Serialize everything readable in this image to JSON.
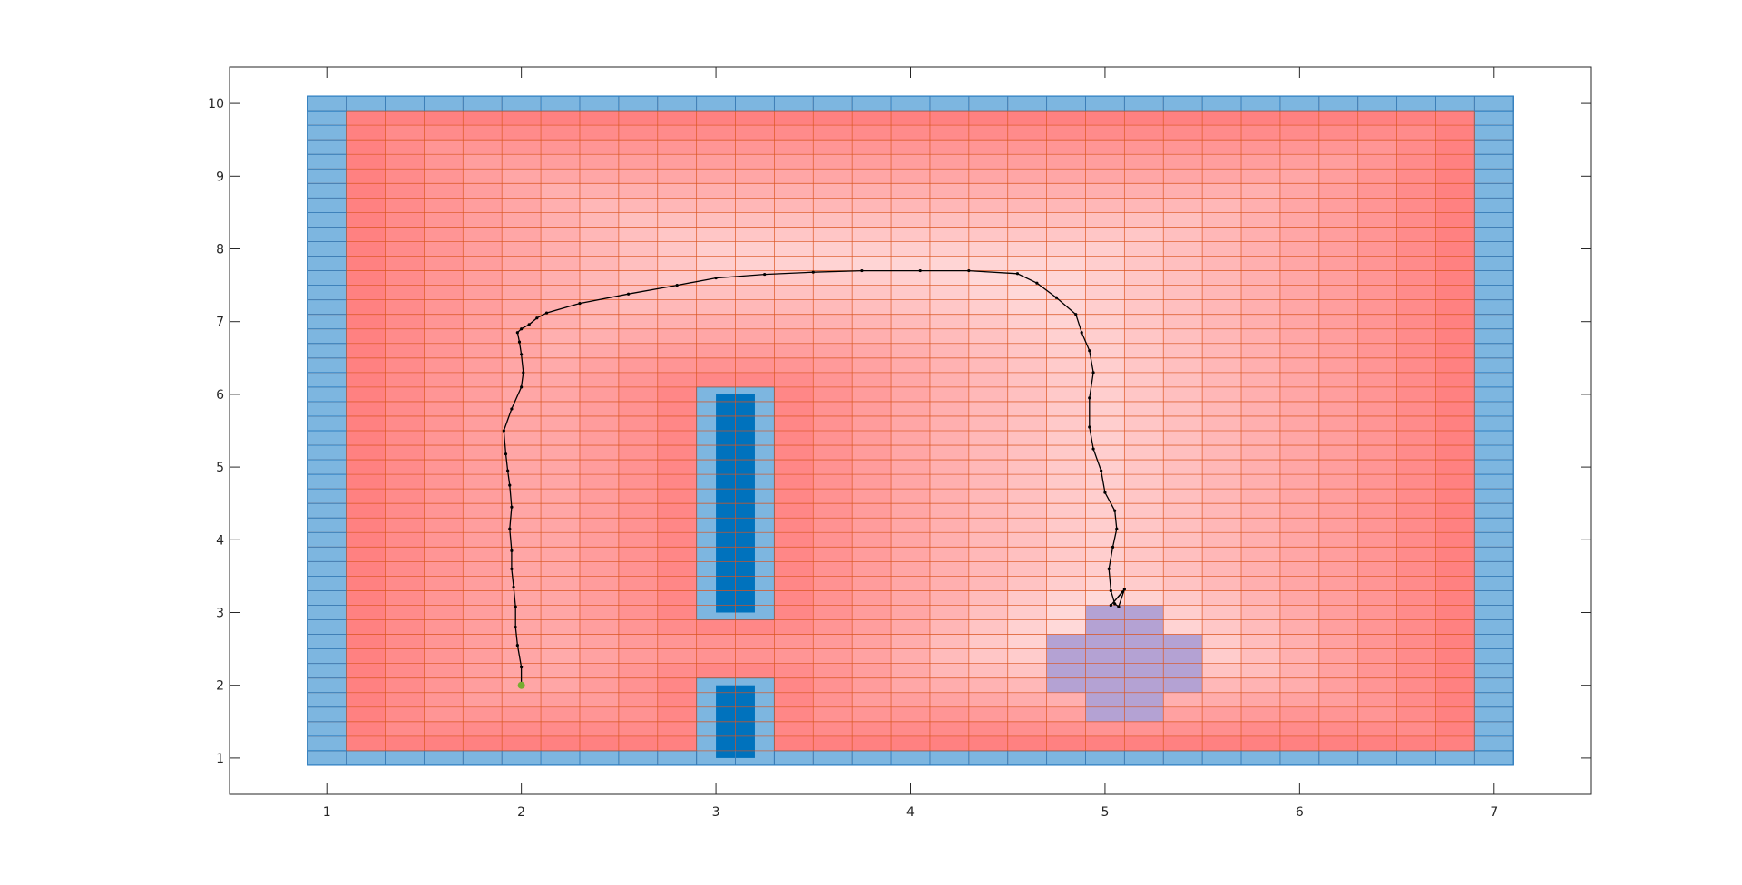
{
  "chart_data": {
    "type": "heatmap",
    "title": "",
    "xlabel": "",
    "ylabel": "",
    "xlim": [
      0.5,
      7.5
    ],
    "ylim": [
      0.5,
      10.5
    ],
    "xticks": [
      1,
      2,
      3,
      4,
      5,
      6,
      7
    ],
    "yticks": [
      1,
      2,
      3,
      4,
      5,
      6,
      7,
      8,
      9,
      10
    ],
    "xtick_labels": [
      "1",
      "2",
      "3",
      "4",
      "5",
      "6",
      "7"
    ],
    "ytick_labels": [
      "1",
      "2",
      "3",
      "4",
      "5",
      "6",
      "7",
      "8",
      "9",
      "10"
    ],
    "grid": {
      "x_range": [
        0.9,
        7.1
      ],
      "y_range": [
        0.9,
        10.1
      ],
      "cell_width": 0.2,
      "cell_height": 0.2
    },
    "boundary_regions": [
      {
        "name": "left wall",
        "x": [
          0.9,
          1.1
        ],
        "y": [
          0.9,
          10.1
        ]
      },
      {
        "name": "right wall",
        "x": [
          6.9,
          7.1
        ],
        "y": [
          0.9,
          10.1
        ]
      },
      {
        "name": "bottom wall",
        "x": [
          0.9,
          7.1
        ],
        "y": [
          0.9,
          1.1
        ]
      },
      {
        "name": "top wall",
        "x": [
          0.9,
          7.1
        ],
        "y": [
          9.9,
          10.1
        ]
      }
    ],
    "obstacles": [
      {
        "inflated": {
          "x": [
            2.9,
            3.3
          ],
          "y": [
            2.9,
            6.1
          ]
        },
        "core": {
          "x": [
            3.0,
            3.2
          ],
          "y": [
            3.0,
            6.0
          ]
        }
      },
      {
        "inflated": {
          "x": [
            2.9,
            3.3
          ],
          "y": [
            0.9,
            2.1
          ]
        },
        "core": {
          "x": [
            3.0,
            3.2
          ],
          "y": [
            1.0,
            2.0
          ]
        }
      }
    ],
    "goal_region": [
      {
        "x": [
          4.9,
          5.3
        ],
        "y": [
          1.5,
          3.1
        ]
      },
      {
        "x": [
          4.7,
          5.5
        ],
        "y": [
          1.9,
          2.7
        ]
      }
    ],
    "start_point": {
      "x": 2.0,
      "y": 2.0
    },
    "path": {
      "x": [
        2.0,
        2.0,
        1.98,
        1.97,
        1.97,
        1.96,
        1.95,
        1.95,
        1.94,
        1.95,
        1.94,
        1.93,
        1.92,
        1.91,
        1.95,
        2.0,
        2.01,
        2.0,
        1.99,
        1.98,
        2.0,
        2.04,
        2.08,
        2.13,
        2.3,
        2.55,
        2.8,
        3.0,
        3.25,
        3.5,
        3.75,
        4.05,
        4.3,
        4.55,
        4.65,
        4.75,
        4.85,
        4.88,
        4.92,
        4.94,
        4.92,
        4.92,
        4.94,
        4.98,
        5.0,
        5.05,
        5.06,
        5.04,
        5.02,
        5.03,
        5.05,
        5.07,
        5.1,
        5.03,
        5.09
      ],
      "y": [
        2.0,
        2.25,
        2.55,
        2.8,
        3.08,
        3.35,
        3.6,
        3.85,
        4.15,
        4.45,
        4.75,
        4.95,
        5.18,
        5.5,
        5.8,
        6.1,
        6.3,
        6.55,
        6.72,
        6.85,
        6.9,
        6.96,
        7.05,
        7.12,
        7.25,
        7.38,
        7.5,
        7.6,
        7.65,
        7.68,
        7.7,
        7.7,
        7.7,
        7.66,
        7.53,
        7.33,
        7.1,
        6.85,
        6.6,
        6.3,
        5.95,
        5.55,
        5.25,
        4.95,
        4.65,
        4.4,
        4.15,
        3.9,
        3.6,
        3.3,
        3.12,
        3.08,
        3.32,
        3.1,
        3.28
      ]
    },
    "colors": {
      "background": "#ffffff",
      "cost_high": "#ff7a7a",
      "cost_low": "#ffd9d9",
      "grid_lines": "#d9531f",
      "obstacle_inflated": "#7db6e0",
      "obstacle_core": "#0072bd",
      "boundary_edge": "#2f80c2",
      "goal_region": "#b4a2d3",
      "path": "#000000",
      "start_marker": "#77ac30",
      "axes": "#262626"
    }
  }
}
